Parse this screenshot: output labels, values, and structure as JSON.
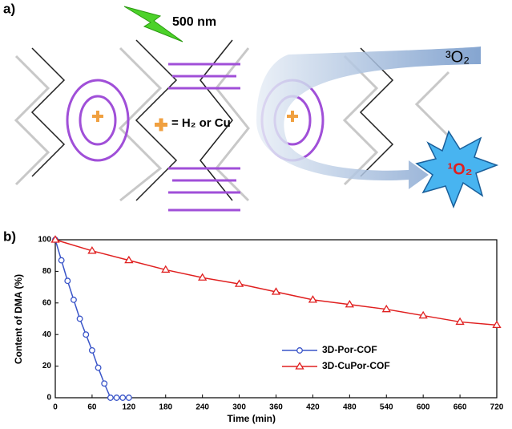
{
  "panel_a": {
    "label": "a)",
    "wavelength": "500 nm",
    "metal_legend": "= H₂ or Cu",
    "reactant": "³O₂",
    "product": "¹O₂"
  },
  "panel_b_label": "b)",
  "chart_data": {
    "type": "line",
    "xlabel": "Time (min)",
    "ylabel": "Content of DMA (%)",
    "xlim": [
      0,
      720
    ],
    "xticks": [
      0,
      60,
      120,
      180,
      240,
      300,
      360,
      420,
      480,
      540,
      600,
      660,
      720
    ],
    "ylim": [
      0,
      100
    ],
    "yticks": [
      0,
      20,
      40,
      60,
      80,
      100
    ],
    "legend": "right",
    "series": [
      {
        "name": "3D-Por-COF",
        "color": "#3a55c8",
        "marker": "circle",
        "x": [
          0,
          10,
          20,
          30,
          40,
          50,
          60,
          70,
          80,
          90,
          100,
          110,
          120
        ],
        "values": [
          100,
          87,
          74,
          62,
          50,
          40,
          30,
          19,
          9,
          0,
          0,
          0,
          0
        ]
      },
      {
        "name": "3D-CuPor-COF",
        "color": "#e02020",
        "marker": "triangle",
        "x": [
          0,
          60,
          120,
          180,
          240,
          300,
          360,
          420,
          480,
          540,
          600,
          660,
          720
        ],
        "values": [
          100,
          93,
          87,
          81,
          76,
          72,
          67,
          62,
          59,
          56,
          52,
          48,
          46
        ]
      }
    ]
  }
}
